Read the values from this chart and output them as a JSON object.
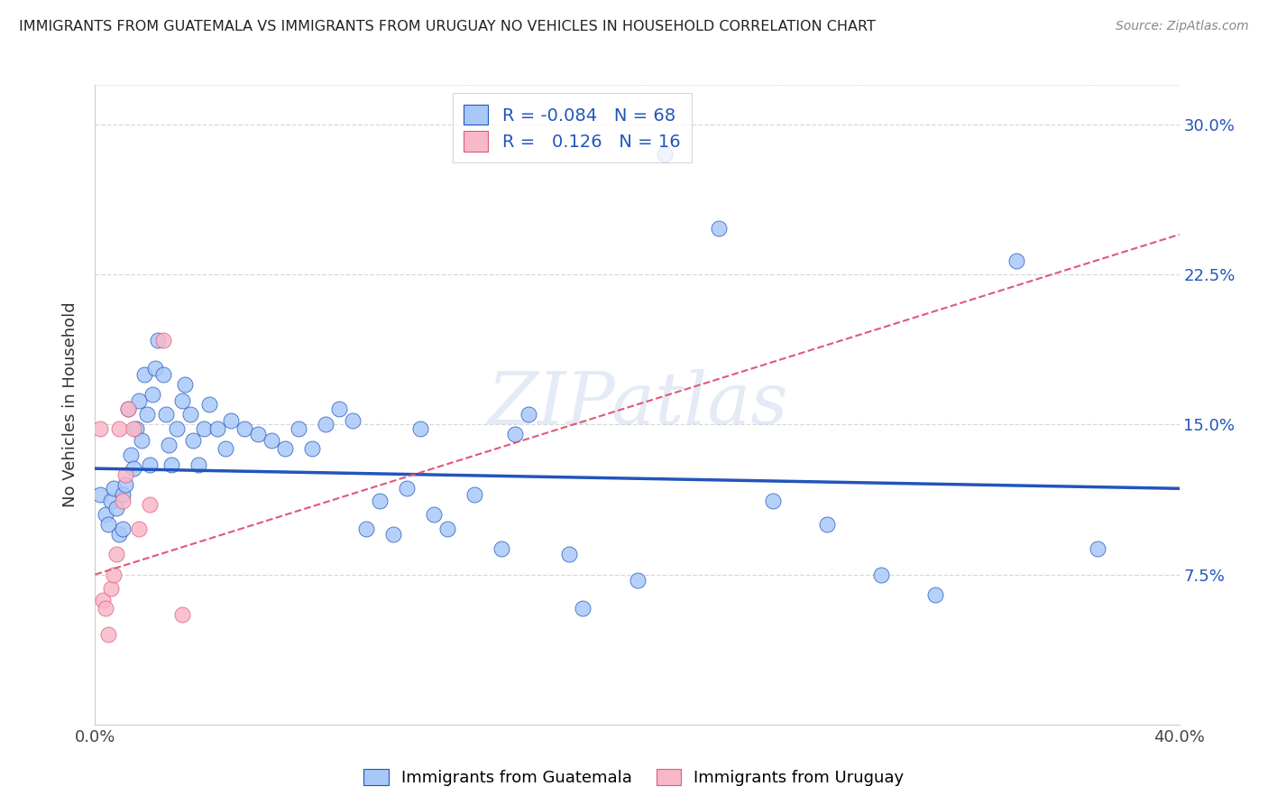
{
  "title": "IMMIGRANTS FROM GUATEMALA VS IMMIGRANTS FROM URUGUAY NO VEHICLES IN HOUSEHOLD CORRELATION CHART",
  "source": "Source: ZipAtlas.com",
  "ylabel": "No Vehicles in Household",
  "xlim": [
    0.0,
    0.4
  ],
  "ylim": [
    0.0,
    0.32
  ],
  "color_guatemala": "#a8c8f8",
  "color_uruguay": "#f8b8c8",
  "line_color_guatemala": "#2255bb",
  "line_color_uruguay": "#e05878",
  "legend_r1": "-0.084",
  "legend_n1": "68",
  "legend_r2": "0.126",
  "legend_n2": "16",
  "watermark": "ZIPatlas",
  "background_color": "#ffffff",
  "grid_color": "#d8d8d8",
  "guatemala_x": [
    0.002,
    0.004,
    0.005,
    0.006,
    0.007,
    0.008,
    0.009,
    0.01,
    0.01,
    0.011,
    0.012,
    0.013,
    0.014,
    0.015,
    0.016,
    0.017,
    0.018,
    0.019,
    0.02,
    0.021,
    0.022,
    0.023,
    0.025,
    0.026,
    0.027,
    0.028,
    0.03,
    0.032,
    0.033,
    0.035,
    0.036,
    0.038,
    0.04,
    0.042,
    0.045,
    0.048,
    0.05,
    0.055,
    0.06,
    0.065,
    0.07,
    0.075,
    0.08,
    0.085,
    0.09,
    0.095,
    0.1,
    0.105,
    0.11,
    0.115,
    0.12,
    0.125,
    0.13,
    0.14,
    0.15,
    0.155,
    0.16,
    0.175,
    0.18,
    0.2,
    0.21,
    0.23,
    0.25,
    0.27,
    0.29,
    0.31,
    0.34,
    0.37
  ],
  "guatemala_y": [
    0.115,
    0.105,
    0.1,
    0.112,
    0.118,
    0.108,
    0.095,
    0.115,
    0.098,
    0.12,
    0.158,
    0.135,
    0.128,
    0.148,
    0.162,
    0.142,
    0.175,
    0.155,
    0.13,
    0.165,
    0.178,
    0.192,
    0.175,
    0.155,
    0.14,
    0.13,
    0.148,
    0.162,
    0.17,
    0.155,
    0.142,
    0.13,
    0.148,
    0.16,
    0.148,
    0.138,
    0.152,
    0.148,
    0.145,
    0.142,
    0.138,
    0.148,
    0.138,
    0.15,
    0.158,
    0.152,
    0.098,
    0.112,
    0.095,
    0.118,
    0.148,
    0.105,
    0.098,
    0.115,
    0.088,
    0.145,
    0.155,
    0.085,
    0.058,
    0.072,
    0.285,
    0.248,
    0.112,
    0.1,
    0.075,
    0.065,
    0.232,
    0.088
  ],
  "uruguay_x": [
    0.002,
    0.003,
    0.004,
    0.005,
    0.006,
    0.007,
    0.008,
    0.009,
    0.01,
    0.011,
    0.012,
    0.014,
    0.016,
    0.02,
    0.025,
    0.032
  ],
  "uruguay_y": [
    0.148,
    0.062,
    0.058,
    0.045,
    0.068,
    0.075,
    0.085,
    0.148,
    0.112,
    0.125,
    0.158,
    0.148,
    0.098,
    0.11,
    0.192,
    0.055
  ],
  "trend_blue_x0": 0.0,
  "trend_blue_y0": 0.128,
  "trend_blue_x1": 0.4,
  "trend_blue_y1": 0.118,
  "trend_pink_x0": 0.0,
  "trend_pink_y0": 0.075,
  "trend_pink_x1": 0.4,
  "trend_pink_y1": 0.245
}
